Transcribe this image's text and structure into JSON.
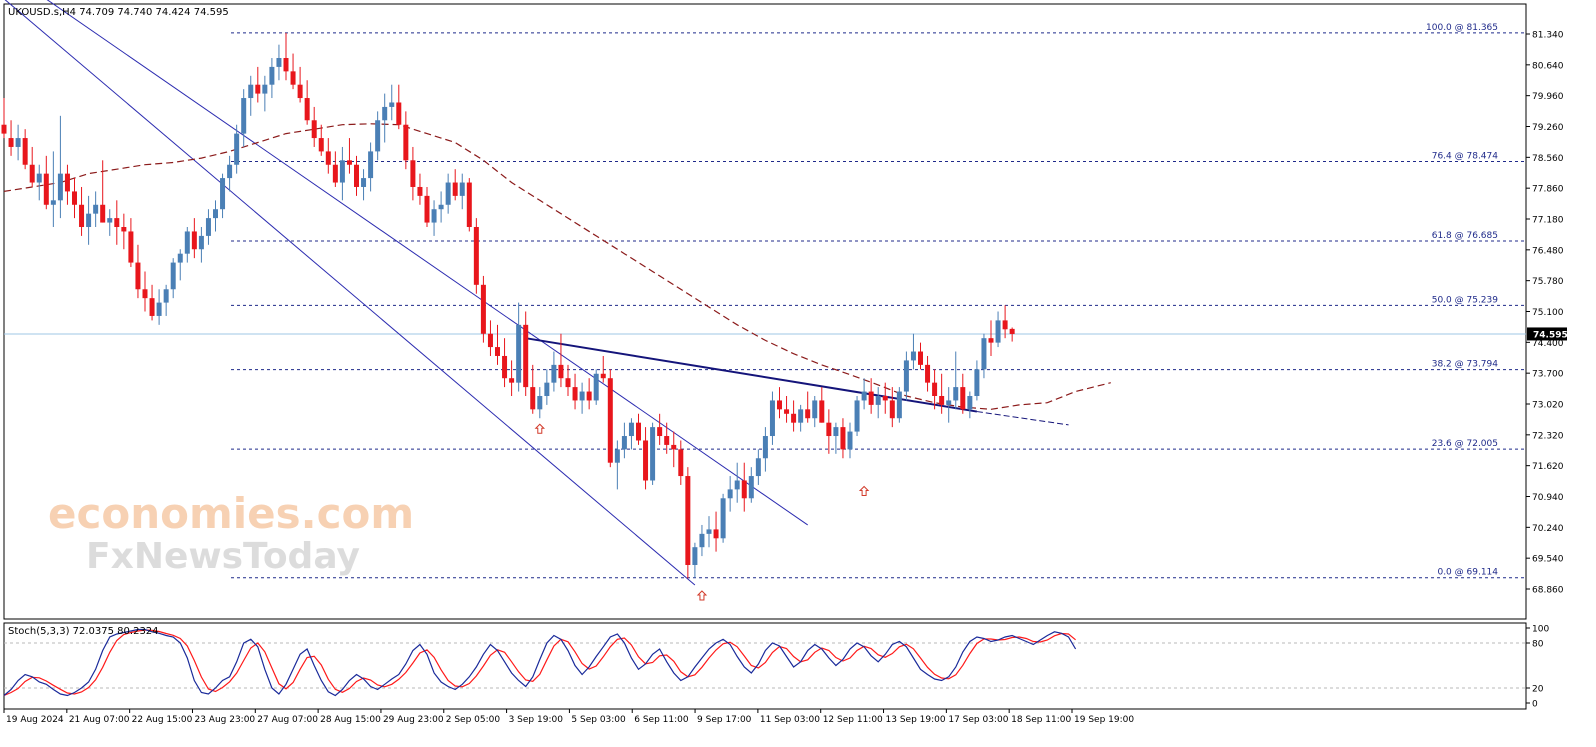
{
  "header": {
    "main_title": "UKOUSD.s,H4  74.709 74.740 74.424 74.595",
    "stoch_title": "Stoch(5,3,3) 72.0375 80.2324"
  },
  "watermark": {
    "line1": "economies.com",
    "line2": "FxNewsToday"
  },
  "chart_data": [
    {
      "type": "candlestick",
      "symbol": "UKOUSD.s",
      "timeframe": "H4",
      "ohlc_last": {
        "open": 74.709,
        "high": 74.74,
        "low": 74.424,
        "close": 74.595
      },
      "current_price": 74.595,
      "current_price_label": "74.595",
      "ylim": [
        68.86,
        81.34
      ],
      "y_ticks": [
        "81.340",
        "80.640",
        "79.960",
        "79.260",
        "78.560",
        "77.860",
        "77.180",
        "76.480",
        "75.780",
        "75.100",
        "74.400",
        "73.700",
        "73.020",
        "72.320",
        "71.620",
        "70.940",
        "70.240",
        "69.540",
        "68.860"
      ],
      "x_ticks": [
        "19 Aug 2024",
        "21 Aug 07:00",
        "22 Aug 15:00",
        "23 Aug 23:00",
        "27 Aug 07:00",
        "28 Aug 15:00",
        "29 Aug 23:00",
        "2 Sep 05:00",
        "3 Sep 19:00",
        "5 Sep 03:00",
        "6 Sep 11:00",
        "9 Sep 17:00",
        "11 Sep 03:00",
        "12 Sep 11:00",
        "13 Sep 19:00",
        "17 Sep 03:00",
        "18 Sep 11:00",
        "19 Sep 19:00"
      ],
      "fibonacci": [
        {
          "level": "100.0",
          "price": 81.365,
          "label": "100.0 @ 81.365"
        },
        {
          "level": "76.4",
          "price": 78.474,
          "label": "76.4 @ 78.474"
        },
        {
          "level": "61.8",
          "price": 76.685,
          "label": "61.8 @ 76.685"
        },
        {
          "level": "50.0",
          "price": 75.239,
          "label": "50.0 @ 75.239"
        },
        {
          "level": "38.2",
          "price": 73.794,
          "label": "38.2 @ 73.794"
        },
        {
          "level": "23.6",
          "price": 72.005,
          "label": "23.6 @ 72.005"
        },
        {
          "level": "0.0",
          "price": 69.114,
          "label": "0.0 @ 69.114"
        }
      ],
      "candles": [
        [
          79.3,
          79.9,
          79.0,
          79.1
        ],
        [
          79.0,
          79.4,
          78.6,
          78.8
        ],
        [
          78.8,
          79.3,
          78.5,
          79.0
        ],
        [
          79.0,
          79.2,
          78.3,
          78.4
        ],
        [
          78.4,
          78.8,
          77.9,
          78.0
        ],
        [
          78.0,
          78.4,
          77.6,
          78.2
        ],
        [
          78.2,
          78.6,
          77.4,
          77.5
        ],
        [
          77.5,
          78.7,
          77.0,
          77.6
        ],
        [
          77.6,
          79.5,
          77.2,
          78.2
        ],
        [
          78.2,
          78.4,
          77.5,
          77.8
        ],
        [
          77.8,
          78.1,
          77.2,
          77.5
        ],
        [
          77.5,
          77.9,
          76.8,
          77.0
        ],
        [
          77.0,
          77.7,
          76.6,
          77.3
        ],
        [
          77.3,
          77.8,
          77.0,
          77.5
        ],
        [
          77.5,
          78.5,
          77.1,
          77.1
        ],
        [
          77.1,
          77.4,
          76.8,
          77.2
        ],
        [
          77.2,
          77.6,
          76.6,
          77.0
        ],
        [
          77.0,
          77.3,
          76.5,
          76.9
        ],
        [
          76.9,
          77.2,
          76.1,
          76.2
        ],
        [
          76.2,
          76.6,
          75.4,
          75.6
        ],
        [
          75.6,
          76.0,
          75.1,
          75.4
        ],
        [
          75.4,
          75.7,
          74.9,
          75.0
        ],
        [
          75.0,
          75.6,
          74.8,
          75.3
        ],
        [
          75.3,
          75.7,
          75.0,
          75.6
        ],
        [
          75.6,
          76.3,
          75.4,
          76.2
        ],
        [
          76.2,
          76.5,
          75.8,
          76.4
        ],
        [
          76.4,
          77.0,
          76.2,
          76.9
        ],
        [
          76.9,
          77.2,
          76.3,
          76.5
        ],
        [
          76.5,
          77.0,
          76.2,
          76.8
        ],
        [
          76.8,
          77.4,
          76.6,
          77.2
        ],
        [
          77.2,
          77.6,
          76.9,
          77.4
        ],
        [
          77.4,
          78.2,
          77.2,
          78.1
        ],
        [
          78.1,
          78.6,
          77.8,
          78.4
        ],
        [
          78.4,
          79.3,
          78.2,
          79.1
        ],
        [
          79.1,
          80.1,
          78.8,
          79.9
        ],
        [
          79.9,
          80.4,
          79.5,
          80.2
        ],
        [
          80.2,
          80.6,
          79.8,
          80.0
        ],
        [
          80.0,
          80.4,
          79.6,
          80.2
        ],
        [
          80.2,
          80.8,
          79.9,
          80.6
        ],
        [
          80.6,
          81.1,
          80.3,
          80.8
        ],
        [
          80.8,
          81.365,
          80.3,
          80.5
        ],
        [
          80.5,
          80.9,
          80.1,
          80.2
        ],
        [
          80.2,
          80.6,
          79.8,
          79.9
        ],
        [
          79.9,
          80.3,
          79.3,
          79.4
        ],
        [
          79.4,
          79.7,
          78.8,
          79.0
        ],
        [
          79.0,
          79.3,
          78.6,
          78.7
        ],
        [
          78.7,
          79.0,
          78.2,
          78.4
        ],
        [
          78.4,
          78.7,
          77.9,
          78.0
        ],
        [
          78.0,
          78.8,
          77.6,
          78.5
        ],
        [
          78.5,
          79.0,
          78.2,
          78.4
        ],
        [
          78.4,
          78.6,
          77.7,
          77.9
        ],
        [
          77.9,
          78.3,
          77.6,
          78.1
        ],
        [
          78.1,
          78.9,
          77.8,
          78.7
        ],
        [
          78.7,
          79.6,
          78.5,
          79.4
        ],
        [
          79.4,
          80.0,
          78.9,
          79.7
        ],
        [
          79.7,
          80.2,
          79.4,
          79.8
        ],
        [
          79.8,
          80.2,
          79.2,
          79.3
        ],
        [
          79.3,
          79.6,
          78.3,
          78.5
        ],
        [
          78.5,
          78.8,
          77.6,
          77.9
        ],
        [
          77.9,
          78.2,
          77.5,
          77.7
        ],
        [
          77.7,
          77.9,
          77.0,
          77.1
        ],
        [
          77.1,
          77.6,
          76.8,
          77.4
        ],
        [
          77.4,
          77.8,
          77.1,
          77.5
        ],
        [
          77.5,
          78.2,
          77.3,
          78.0
        ],
        [
          78.0,
          78.3,
          77.6,
          77.7
        ],
        [
          77.7,
          78.2,
          77.4,
          78.0
        ],
        [
          78.0,
          78.1,
          76.9,
          77.0
        ],
        [
          77.0,
          77.2,
          75.5,
          75.7
        ],
        [
          75.7,
          75.9,
          74.4,
          74.6
        ],
        [
          74.6,
          74.9,
          74.1,
          74.3
        ],
        [
          74.3,
          74.8,
          73.9,
          74.1
        ],
        [
          74.1,
          74.5,
          73.4,
          73.6
        ],
        [
          73.6,
          74.0,
          73.2,
          73.5
        ],
        [
          73.5,
          75.3,
          73.3,
          74.8
        ],
        [
          74.8,
          75.1,
          73.2,
          73.4
        ],
        [
          73.4,
          73.9,
          72.8,
          72.9
        ],
        [
          72.9,
          73.4,
          72.7,
          73.2
        ],
        [
          73.2,
          73.8,
          73.0,
          73.5
        ],
        [
          73.5,
          74.2,
          73.3,
          73.9
        ],
        [
          73.9,
          74.6,
          73.4,
          73.6
        ],
        [
          73.6,
          73.9,
          73.2,
          73.4
        ],
        [
          73.4,
          73.7,
          72.9,
          73.1
        ],
        [
          73.1,
          73.5,
          72.8,
          73.3
        ],
        [
          73.3,
          73.6,
          72.9,
          73.1
        ],
        [
          73.1,
          73.8,
          73.0,
          73.7
        ],
        [
          73.7,
          74.1,
          73.5,
          73.6
        ],
        [
          73.6,
          73.8,
          71.6,
          71.7
        ],
        [
          71.7,
          72.2,
          71.1,
          72.0
        ],
        [
          72.0,
          72.6,
          71.8,
          72.3
        ],
        [
          72.3,
          72.7,
          72.0,
          72.6
        ],
        [
          72.6,
          72.8,
          72.1,
          72.2
        ],
        [
          72.2,
          72.5,
          71.1,
          71.3
        ],
        [
          71.3,
          72.6,
          71.2,
          72.5
        ],
        [
          72.5,
          72.8,
          72.1,
          72.3
        ],
        [
          72.3,
          72.6,
          71.9,
          72.1
        ],
        [
          72.1,
          72.4,
          71.6,
          72.0
        ],
        [
          72.0,
          72.2,
          71.2,
          71.4
        ],
        [
          71.4,
          71.6,
          69.1,
          69.4
        ],
        [
          69.4,
          69.9,
          69.114,
          69.8
        ],
        [
          69.8,
          70.3,
          69.6,
          70.1
        ],
        [
          70.1,
          70.5,
          69.8,
          70.2
        ],
        [
          70.2,
          70.6,
          69.7,
          70.0
        ],
        [
          70.0,
          71.0,
          69.9,
          70.9
        ],
        [
          70.9,
          71.4,
          70.6,
          71.1
        ],
        [
          71.1,
          71.7,
          70.8,
          71.3
        ],
        [
          71.3,
          71.7,
          70.6,
          70.9
        ],
        [
          70.9,
          71.6,
          70.8,
          71.4
        ],
        [
          71.4,
          72.0,
          71.2,
          71.8
        ],
        [
          71.8,
          72.5,
          71.5,
          72.3
        ],
        [
          72.3,
          73.3,
          72.1,
          73.1
        ],
        [
          73.1,
          73.4,
          72.7,
          72.9
        ],
        [
          72.9,
          73.2,
          72.6,
          72.8
        ],
        [
          72.8,
          73.1,
          72.4,
          72.6
        ],
        [
          72.6,
          73.0,
          72.4,
          72.9
        ],
        [
          72.9,
          73.3,
          72.6,
          72.7
        ],
        [
          72.7,
          73.2,
          72.5,
          73.1
        ],
        [
          73.1,
          73.4,
          72.6,
          72.6
        ],
        [
          72.6,
          72.9,
          71.9,
          72.3
        ],
        [
          72.3,
          72.6,
          71.9,
          72.5
        ],
        [
          72.5,
          72.7,
          71.8,
          72.0
        ],
        [
          72.0,
          72.6,
          71.8,
          72.4
        ],
        [
          72.4,
          73.2,
          72.3,
          73.1
        ],
        [
          73.1,
          73.6,
          72.9,
          73.3
        ],
        [
          73.3,
          73.6,
          72.8,
          73.0
        ],
        [
          73.0,
          73.4,
          72.7,
          73.2
        ],
        [
          73.2,
          73.5,
          72.8,
          73.1
        ],
        [
          73.1,
          73.4,
          72.5,
          72.7
        ],
        [
          72.7,
          73.4,
          72.6,
          73.3
        ],
        [
          73.3,
          74.2,
          73.1,
          74.0
        ],
        [
          74.0,
          74.6,
          73.8,
          74.2
        ],
        [
          74.2,
          74.4,
          73.8,
          73.9
        ],
        [
          73.9,
          74.1,
          73.3,
          73.5
        ],
        [
          73.5,
          73.8,
          72.9,
          73.2
        ],
        [
          73.2,
          73.7,
          72.8,
          73.0
        ],
        [
          73.0,
          73.4,
          72.6,
          73.1
        ],
        [
          73.1,
          74.2,
          72.9,
          73.4
        ],
        [
          73.4,
          73.7,
          72.8,
          72.9
        ],
        [
          72.9,
          73.3,
          72.7,
          73.2
        ],
        [
          73.2,
          74.0,
          73.1,
          73.8
        ],
        [
          73.8,
          74.6,
          73.6,
          74.5
        ],
        [
          74.5,
          74.9,
          74.1,
          74.4
        ],
        [
          74.4,
          75.1,
          74.3,
          74.9
        ],
        [
          74.9,
          75.239,
          74.5,
          74.7
        ],
        [
          74.709,
          74.74,
          74.424,
          74.595
        ]
      ],
      "ma_dashed": [
        77.8,
        77.9,
        78.0,
        78.2,
        78.3,
        78.4,
        78.45,
        78.55,
        78.7,
        78.9,
        79.1,
        79.2,
        79.3,
        79.32,
        79.3,
        79.1,
        78.9,
        78.5,
        78.0,
        77.6,
        77.2,
        76.8,
        76.4,
        76.0,
        75.6,
        75.2,
        74.8,
        74.45,
        74.15,
        73.9,
        73.68,
        73.45,
        73.2,
        73.05,
        72.95,
        72.9,
        73.0,
        73.05,
        73.3,
        73.5
      ],
      "ma_x": [
        0,
        4,
        8,
        12,
        16,
        20,
        24,
        28,
        32,
        36,
        40,
        44,
        48,
        52,
        56,
        60,
        64,
        68,
        72,
        76,
        80,
        84,
        88,
        92,
        96,
        100,
        104,
        108,
        112,
        116,
        120,
        124,
        128,
        132,
        136,
        140,
        144,
        148,
        152,
        157
      ],
      "trendlines": [
        {
          "type": "channel-upper",
          "from": [
            -2,
            83.0
          ],
          "to": [
            114,
            70.3
          ]
        },
        {
          "type": "channel-lower",
          "from": [
            -2,
            82.4
          ],
          "to": [
            98,
            68.95
          ]
        },
        {
          "type": "resistance",
          "from": [
            74,
            74.5
          ],
          "to": [
            138,
            72.85
          ]
        },
        {
          "type": "resistance-ext",
          "from": [
            138,
            72.85
          ],
          "to": [
            151,
            72.55
          ]
        }
      ],
      "markers": [
        {
          "index": 76,
          "price": 72.7
        },
        {
          "index": 99,
          "price": 68.95
        },
        {
          "index": 122,
          "price": 71.3
        }
      ]
    },
    {
      "type": "line",
      "name": "Stoch(5,3,3)",
      "main_value": 72.0375,
      "signal_value": 80.2324,
      "ylim": [
        0,
        100
      ],
      "y_ticks": [
        "100",
        "80",
        "20",
        "0"
      ],
      "levels": [
        80,
        20
      ],
      "main": [
        10,
        18,
        30,
        38,
        35,
        28,
        25,
        18,
        12,
        10,
        14,
        20,
        28,
        45,
        70,
        88,
        92,
        94,
        96,
        98,
        98,
        95,
        93,
        90,
        88,
        80,
        60,
        30,
        14,
        12,
        20,
        30,
        35,
        55,
        80,
        85,
        75,
        45,
        20,
        12,
        25,
        45,
        65,
        72,
        50,
        30,
        15,
        10,
        18,
        30,
        38,
        32,
        22,
        18,
        25,
        32,
        38,
        52,
        70,
        78,
        65,
        40,
        28,
        22,
        18,
        25,
        35,
        48,
        65,
        78,
        70,
        55,
        40,
        30,
        22,
        35,
        58,
        80,
        90,
        85,
        70,
        50,
        38,
        48,
        62,
        75,
        88,
        92,
        80,
        60,
        45,
        52,
        65,
        72,
        55,
        40,
        30,
        35,
        48,
        60,
        72,
        80,
        85,
        78,
        62,
        48,
        40,
        52,
        70,
        80,
        76,
        62,
        48,
        55,
        70,
        78,
        72,
        60,
        50,
        58,
        72,
        80,
        75,
        63,
        55,
        65,
        78,
        82,
        75,
        60,
        45,
        38,
        32,
        30,
        35,
        48,
        68,
        82,
        88,
        86,
        82,
        84,
        88,
        90,
        86,
        82,
        78,
        84,
        90,
        95,
        93,
        88,
        72
      ]
    }
  ]
}
